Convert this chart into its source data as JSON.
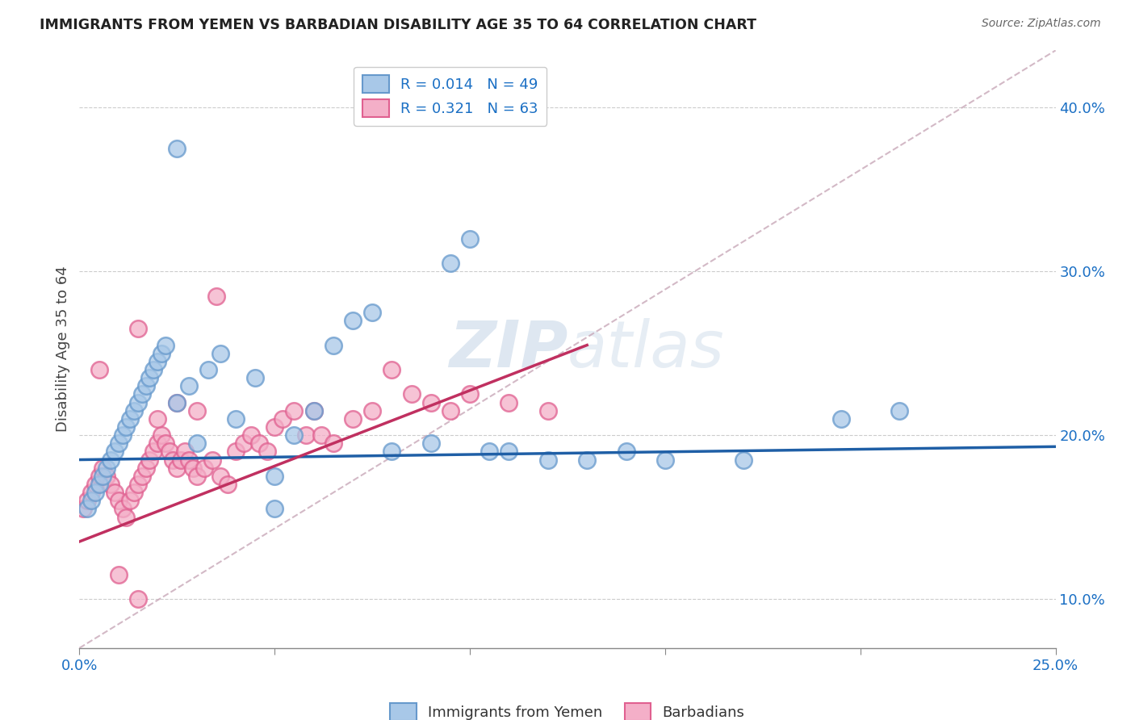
{
  "title": "IMMIGRANTS FROM YEMEN VS BARBADIAN DISABILITY AGE 35 TO 64 CORRELATION CHART",
  "source": "Source: ZipAtlas.com",
  "ylabel": "Disability Age 35 to 64",
  "xlim": [
    0.0,
    0.25
  ],
  "ylim": [
    0.07,
    0.435
  ],
  "yticks": [
    0.1,
    0.2,
    0.3,
    0.4
  ],
  "ytick_labels": [
    "10.0%",
    "20.0%",
    "30.0%",
    "40.0%"
  ],
  "xtick_labels": [
    "0.0%",
    "",
    "",
    "",
    "",
    "25.0%"
  ],
  "legend_r1": "R = 0.014",
  "legend_n1": "N = 49",
  "legend_r2": "R = 0.321",
  "legend_n2": "N = 63",
  "color_blue": "#a8c8e8",
  "color_blue_edge": "#6699cc",
  "color_pink": "#f4afc8",
  "color_pink_edge": "#e06090",
  "color_blue_line": "#1f5fa6",
  "color_pink_line": "#c03060",
  "color_diag": "#c8a8b8",
  "watermark_color": "#c8d8e8",
  "blue_scatter_x": [
    0.002,
    0.003,
    0.004,
    0.005,
    0.006,
    0.007,
    0.008,
    0.009,
    0.01,
    0.011,
    0.012,
    0.013,
    0.014,
    0.015,
    0.016,
    0.017,
    0.018,
    0.019,
    0.02,
    0.021,
    0.022,
    0.025,
    0.028,
    0.03,
    0.033,
    0.036,
    0.04,
    0.045,
    0.05,
    0.055,
    0.06,
    0.065,
    0.07,
    0.075,
    0.08,
    0.09,
    0.095,
    0.1,
    0.105,
    0.11,
    0.12,
    0.13,
    0.14,
    0.15,
    0.17,
    0.195,
    0.21,
    0.025,
    0.05
  ],
  "blue_scatter_y": [
    0.155,
    0.16,
    0.165,
    0.17,
    0.175,
    0.18,
    0.185,
    0.19,
    0.195,
    0.2,
    0.205,
    0.21,
    0.215,
    0.22,
    0.225,
    0.23,
    0.235,
    0.24,
    0.245,
    0.25,
    0.255,
    0.22,
    0.23,
    0.195,
    0.24,
    0.25,
    0.21,
    0.235,
    0.175,
    0.2,
    0.215,
    0.255,
    0.27,
    0.275,
    0.19,
    0.195,
    0.305,
    0.32,
    0.19,
    0.19,
    0.185,
    0.185,
    0.19,
    0.185,
    0.185,
    0.21,
    0.215,
    0.375,
    0.155
  ],
  "pink_scatter_x": [
    0.001,
    0.002,
    0.003,
    0.004,
    0.005,
    0.006,
    0.007,
    0.008,
    0.009,
    0.01,
    0.011,
    0.012,
    0.013,
    0.014,
    0.015,
    0.016,
    0.017,
    0.018,
    0.019,
    0.02,
    0.021,
    0.022,
    0.023,
    0.024,
    0.025,
    0.026,
    0.027,
    0.028,
    0.029,
    0.03,
    0.032,
    0.034,
    0.036,
    0.038,
    0.04,
    0.042,
    0.044,
    0.046,
    0.048,
    0.05,
    0.052,
    0.055,
    0.058,
    0.06,
    0.062,
    0.065,
    0.07,
    0.075,
    0.08,
    0.085,
    0.09,
    0.095,
    0.1,
    0.11,
    0.12,
    0.015,
    0.02,
    0.025,
    0.03,
    0.035,
    0.005,
    0.01,
    0.015
  ],
  "pink_scatter_y": [
    0.155,
    0.16,
    0.165,
    0.17,
    0.175,
    0.18,
    0.175,
    0.17,
    0.165,
    0.16,
    0.155,
    0.15,
    0.16,
    0.165,
    0.17,
    0.175,
    0.18,
    0.185,
    0.19,
    0.195,
    0.2,
    0.195,
    0.19,
    0.185,
    0.18,
    0.185,
    0.19,
    0.185,
    0.18,
    0.175,
    0.18,
    0.185,
    0.175,
    0.17,
    0.19,
    0.195,
    0.2,
    0.195,
    0.19,
    0.205,
    0.21,
    0.215,
    0.2,
    0.215,
    0.2,
    0.195,
    0.21,
    0.215,
    0.24,
    0.225,
    0.22,
    0.215,
    0.225,
    0.22,
    0.215,
    0.265,
    0.21,
    0.22,
    0.215,
    0.285,
    0.24,
    0.115,
    0.1
  ],
  "blue_line_x": [
    0.0,
    0.25
  ],
  "blue_line_y": [
    0.185,
    0.193
  ],
  "pink_line_x": [
    0.0,
    0.13
  ],
  "pink_line_y": [
    0.135,
    0.255
  ]
}
